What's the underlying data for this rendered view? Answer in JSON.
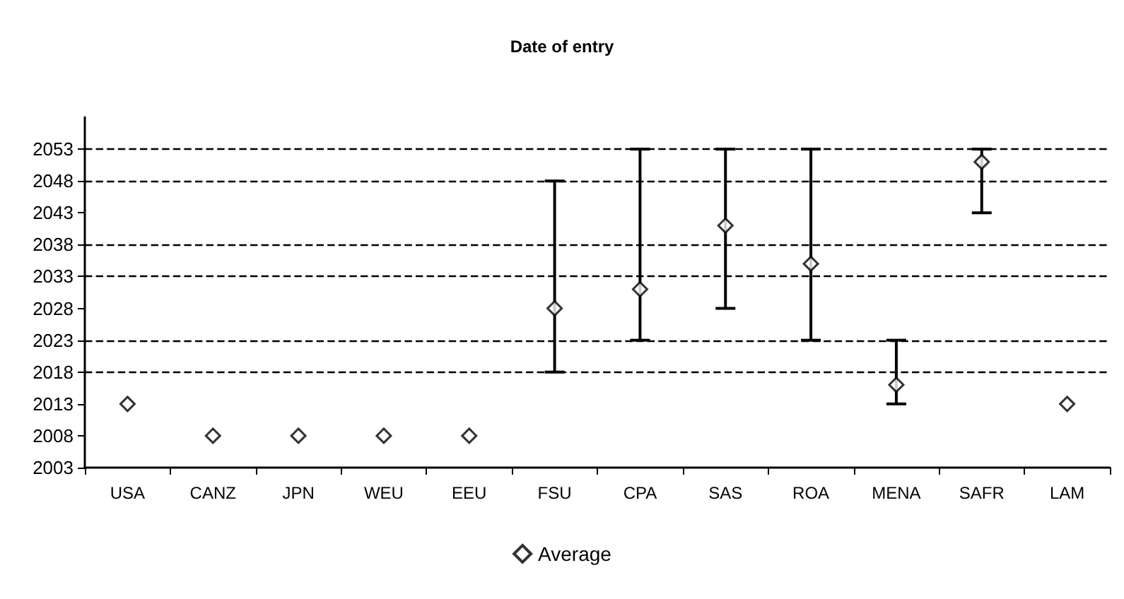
{
  "chart_data": {
    "type": "scatter",
    "title": "Date of entry",
    "categories": [
      "USA",
      "CANZ",
      "JPN",
      "WEU",
      "EEU",
      "FSU",
      "CPA",
      "SAS",
      "ROA",
      "MENA",
      "SAFR",
      "LAM"
    ],
    "series": [
      {
        "name": "Average",
        "color": "#000000",
        "values": [
          2013,
          2008,
          2008,
          2008,
          2008,
          2028,
          2031,
          2041,
          2035,
          2016,
          2051,
          2013
        ],
        "errors": [
          null,
          null,
          null,
          null,
          null,
          [
            2018,
            2048
          ],
          [
            2023,
            2053
          ],
          [
            2028,
            2053
          ],
          [
            2023,
            2053
          ],
          [
            2013,
            2023
          ],
          [
            2043,
            2053
          ],
          null
        ]
      }
    ],
    "ylim": [
      2003,
      2058
    ],
    "yticks": [
      2003,
      2008,
      2013,
      2018,
      2023,
      2028,
      2033,
      2038,
      2043,
      2048,
      2053
    ],
    "ref_lines": [
      {
        "axis": "y",
        "value": 2018,
        "line_style": "dashed"
      },
      {
        "axis": "y",
        "value": 2023,
        "line_style": "dashed"
      },
      {
        "axis": "y",
        "value": 2033,
        "line_style": "dashed"
      },
      {
        "axis": "y",
        "value": 2038,
        "line_style": "dashed"
      },
      {
        "axis": "y",
        "value": 2048,
        "line_style": "dashed"
      },
      {
        "axis": "y",
        "value": 2053,
        "line_style": "dashed"
      }
    ],
    "grid": false,
    "legend": "bottom",
    "marker": "diamond"
  }
}
